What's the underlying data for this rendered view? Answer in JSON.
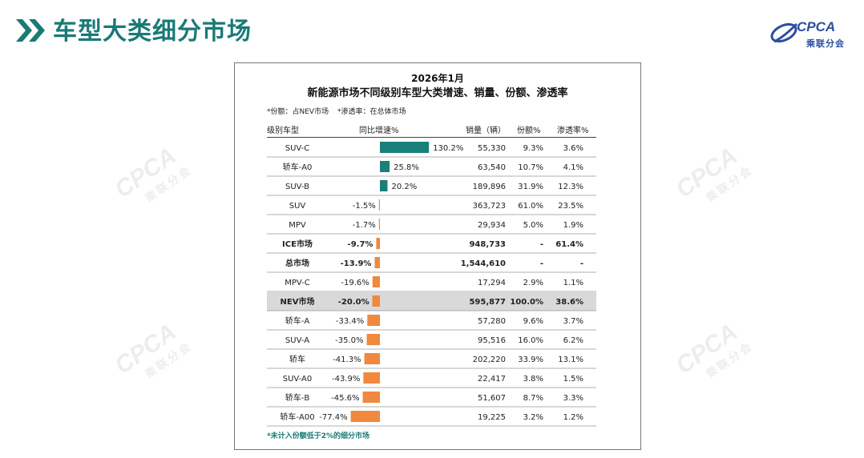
{
  "slide": {
    "title": "车型大类细分市场",
    "logo": {
      "text": "CPCA",
      "sub": "乘联分会"
    }
  },
  "watermark": {
    "text": "CPCA",
    "sub": "乘联分会"
  },
  "colors": {
    "title": "#1a7a76",
    "growth_bar": "#1a8079",
    "decline_bar": "#f0883e",
    "highlight_row": "#d9d9d9",
    "logo": "#2b4ea0"
  },
  "chart_data": {
    "type": "table",
    "date": "2026年1月",
    "title": "新能源市场不同级别车型大类增速、销量、份额、渗透率",
    "notes": [
      "*份额：占NEV市场",
      "*渗透率：在总体市场"
    ],
    "columns": [
      "级别车型",
      "同比增速%",
      "销量（辆）",
      "份额%",
      "渗透率%"
    ],
    "rows": [
      {
        "name": "SUV-C",
        "growth": 130.2,
        "growth_label": "130.2%",
        "sales": "55,330",
        "share": "9.3%",
        "penetration": "3.6%",
        "bold": false,
        "highlight": false
      },
      {
        "name": "轿车-A0",
        "growth": 25.8,
        "growth_label": "25.8%",
        "sales": "63,540",
        "share": "10.7%",
        "penetration": "4.1%",
        "bold": false,
        "highlight": false
      },
      {
        "name": "SUV-B",
        "growth": 20.2,
        "growth_label": "20.2%",
        "sales": "189,896",
        "share": "31.9%",
        "penetration": "12.3%",
        "bold": false,
        "highlight": false
      },
      {
        "name": "SUV",
        "growth": -1.5,
        "growth_label": "-1.5%",
        "sales": "363,723",
        "share": "61.0%",
        "penetration": "23.5%",
        "bold": false,
        "highlight": false
      },
      {
        "name": "MPV",
        "growth": -1.7,
        "growth_label": "-1.7%",
        "sales": "29,934",
        "share": "5.0%",
        "penetration": "1.9%",
        "bold": false,
        "highlight": false
      },
      {
        "name": "ICE市场",
        "growth": -9.7,
        "growth_label": "-9.7%",
        "sales": "948,733",
        "share": "-",
        "penetration": "61.4%",
        "bold": true,
        "highlight": false
      },
      {
        "name": "总市场",
        "growth": -13.9,
        "growth_label": "-13.9%",
        "sales": "1,544,610",
        "share": "-",
        "penetration": "-",
        "bold": true,
        "highlight": false
      },
      {
        "name": "MPV-C",
        "growth": -19.6,
        "growth_label": "-19.6%",
        "sales": "17,294",
        "share": "2.9%",
        "penetration": "1.1%",
        "bold": false,
        "highlight": false
      },
      {
        "name": "NEV市场",
        "growth": -20.0,
        "growth_label": "-20.0%",
        "sales": "595,877",
        "share": "100.0%",
        "penetration": "38.6%",
        "bold": true,
        "highlight": true
      },
      {
        "name": "轿车-A",
        "growth": -33.4,
        "growth_label": "-33.4%",
        "sales": "57,280",
        "share": "9.6%",
        "penetration": "3.7%",
        "bold": false,
        "highlight": false
      },
      {
        "name": "SUV-A",
        "growth": -35.0,
        "growth_label": "-35.0%",
        "sales": "95,516",
        "share": "16.0%",
        "penetration": "6.2%",
        "bold": false,
        "highlight": false
      },
      {
        "name": "轿车",
        "growth": -41.3,
        "growth_label": "-41.3%",
        "sales": "202,220",
        "share": "33.9%",
        "penetration": "13.1%",
        "bold": false,
        "highlight": false
      },
      {
        "name": "SUV-A0",
        "growth": -43.9,
        "growth_label": "-43.9%",
        "sales": "22,417",
        "share": "3.8%",
        "penetration": "1.5%",
        "bold": false,
        "highlight": false
      },
      {
        "name": "轿车-B",
        "growth": -45.6,
        "growth_label": "-45.6%",
        "sales": "51,607",
        "share": "8.7%",
        "penetration": "3.3%",
        "bold": false,
        "highlight": false
      },
      {
        "name": "轿车-A00",
        "growth": -77.4,
        "growth_label": "-77.4%",
        "sales": "19,225",
        "share": "3.2%",
        "penetration": "1.2%",
        "bold": false,
        "highlight": false
      }
    ],
    "footnote": "*未计入份额低于2%的细分市场"
  }
}
